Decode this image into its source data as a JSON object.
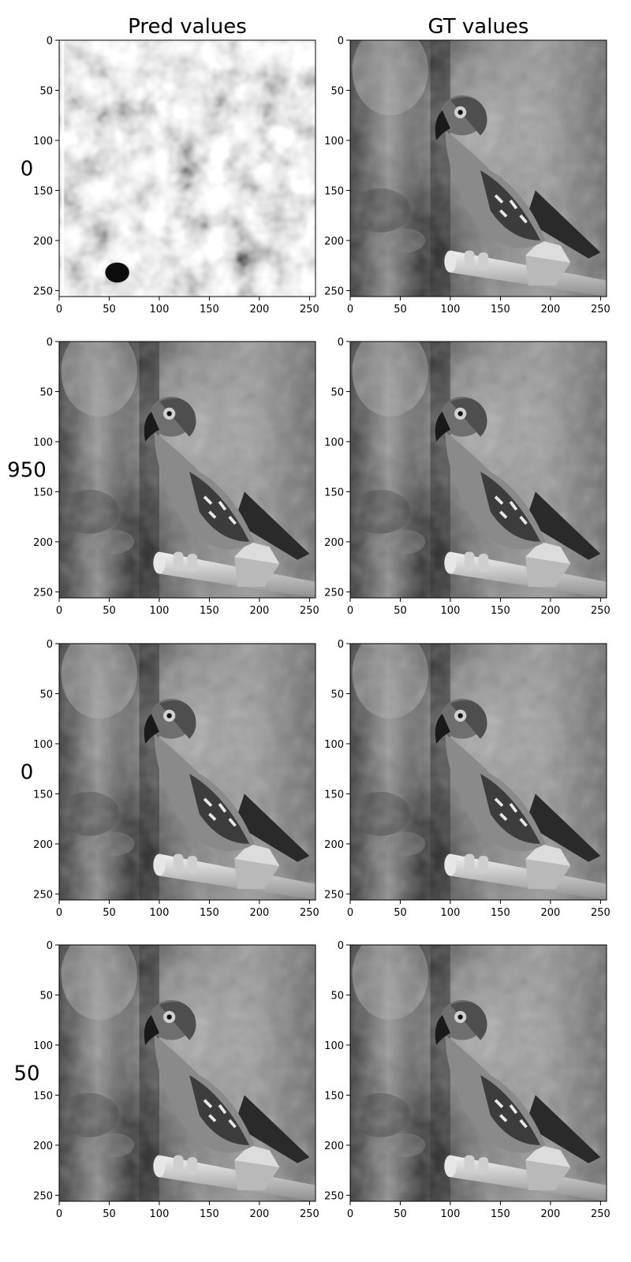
{
  "figure": {
    "columns": [
      "Pred values",
      "GT values"
    ],
    "rows": [
      "0",
      "950",
      "0",
      "50"
    ]
  },
  "chart_data": {
    "type": "heatmap",
    "colormap": "gray",
    "image_size": [
      256,
      256
    ],
    "x_ticks": [
      0,
      50,
      100,
      150,
      200,
      250
    ],
    "y_ticks": [
      0,
      50,
      100,
      150,
      200,
      250
    ],
    "xlim": [
      0,
      256
    ],
    "ylim": [
      256,
      0
    ],
    "grid": false,
    "panels": [
      {
        "row": "0",
        "column": "Pred values",
        "image": "noise"
      },
      {
        "row": "0",
        "column": "GT values",
        "image": "parrot"
      },
      {
        "row": "950",
        "column": "Pred values",
        "image": "parrot"
      },
      {
        "row": "950",
        "column": "GT values",
        "image": "parrot"
      },
      {
        "row": "0",
        "column": "Pred values",
        "image": "parrot"
      },
      {
        "row": "0",
        "column": "GT values",
        "image": "parrot"
      },
      {
        "row": "50",
        "column": "Pred values",
        "image": "parrot"
      },
      {
        "row": "50",
        "column": "GT values",
        "image": "parrot"
      }
    ]
  }
}
